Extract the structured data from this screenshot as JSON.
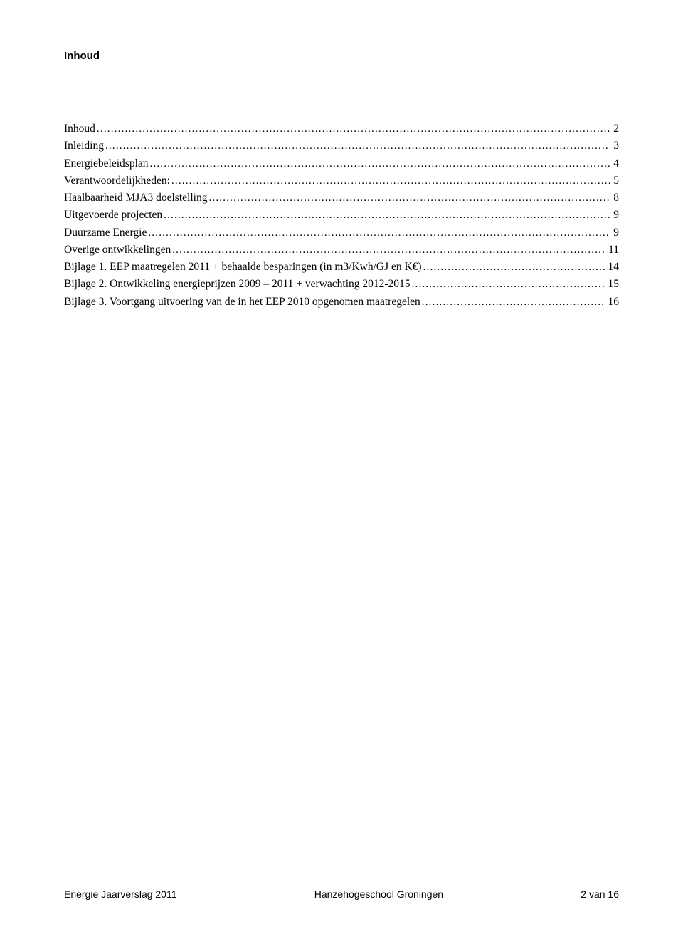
{
  "heading": "Inhoud",
  "toc": [
    {
      "label": "Inhoud",
      "page": "2"
    },
    {
      "label": "Inleiding",
      "page": "3"
    },
    {
      "label": "Energiebeleidsplan",
      "page": "4"
    },
    {
      "label": "Verantwoordelijkheden:",
      "page": "5"
    },
    {
      "label": "Haalbaarheid MJA3 doelstelling",
      "page": "8"
    },
    {
      "label": "Uitgevoerde projecten",
      "page": "9"
    },
    {
      "label": "Duurzame Energie",
      "page": "9"
    },
    {
      "label": "Overige ontwikkelingen",
      "page": "11"
    },
    {
      "label": "Bijlage 1. EEP maatregelen 2011 + behaalde besparingen (in m3/Kwh/GJ en K€)",
      "page": "14"
    },
    {
      "label": "Bijlage 2. Ontwikkeling energieprijzen 2009 – 2011 + verwachting 2012-2015",
      "page": "15"
    },
    {
      "label": "Bijlage 3. Voortgang uitvoering van de in het EEP 2010 opgenomen maatregelen",
      "page": "16"
    }
  ],
  "footer": {
    "left": "Energie Jaarverslag 2011",
    "center": "Hanzehogeschool Groningen",
    "right": "2 van 16"
  }
}
